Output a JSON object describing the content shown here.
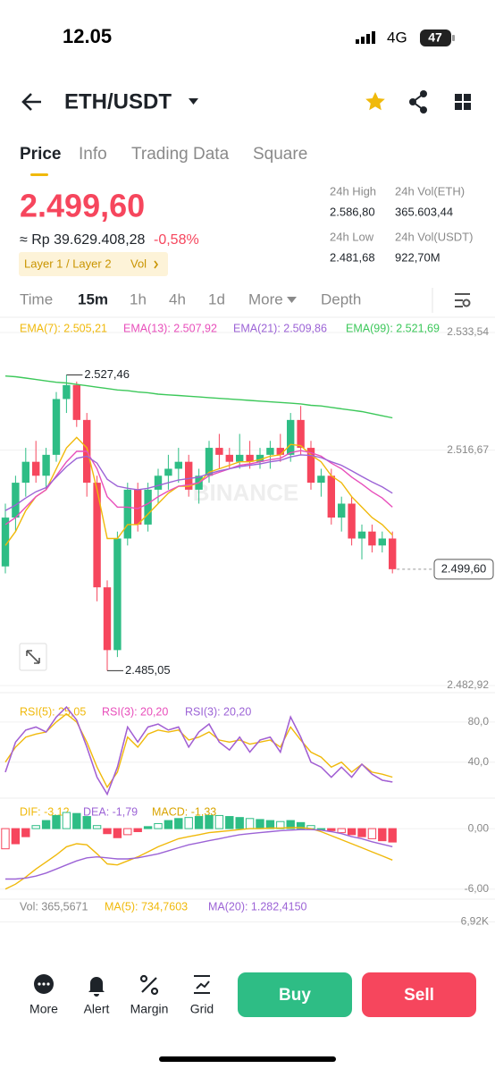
{
  "status_bar": {
    "time": "12.05",
    "network": "4G",
    "battery": "47"
  },
  "header": {
    "pair": "ETH/USDT"
  },
  "tabs": [
    "Price",
    "Info",
    "Trading Data",
    "Square"
  ],
  "ticker": {
    "price": "2.499,60",
    "fiat": "≈ Rp 39.629.408,28",
    "change": "-0,58%",
    "tags": [
      "Layer 1 / Layer 2",
      "Vol"
    ],
    "stats": [
      {
        "label": "24h High",
        "value": "2.586,80"
      },
      {
        "label": "24h Vol(ETH)",
        "value": "365.603,44"
      },
      {
        "label": "24h Low",
        "value": "2.481,68"
      },
      {
        "label": "24h Vol(USDT)",
        "value": "922,70M"
      }
    ]
  },
  "intervals": [
    "Time",
    "15m",
    "1h",
    "4h",
    "1d",
    "More",
    "Depth"
  ],
  "chart_data": [
    {
      "type": "candlestick",
      "watermark": "BINANCE",
      "up_color": "#2ebd85",
      "down_color": "#f6465d",
      "open": [
        2500,
        2507,
        2512,
        2515,
        2513,
        2516,
        2524,
        2526,
        2521,
        2512,
        2497,
        2488,
        2504,
        2511,
        2506,
        2511,
        2513,
        2514,
        2515,
        2511,
        2513,
        2517,
        2516,
        2515,
        2516,
        2515,
        2516,
        2517,
        2516,
        2521,
        2517,
        2512,
        2513,
        2507,
        2509,
        2504,
        2505,
        2503,
        2504
      ],
      "high": [
        2509,
        2513,
        2517,
        2518,
        2517,
        2525,
        2527.46,
        2526.5,
        2522,
        2513,
        2498,
        2505,
        2512,
        2512,
        2512,
        2514,
        2516,
        2517,
        2516,
        2514,
        2518,
        2519,
        2517,
        2519,
        2518,
        2517,
        2518,
        2519,
        2522,
        2523,
        2518,
        2514,
        2514,
        2510,
        2510,
        2506,
        2506,
        2505,
        2505
      ],
      "low": [
        2499,
        2505,
        2510,
        2512,
        2511,
        2515,
        2522,
        2520,
        2510,
        2495,
        2485.05,
        2487,
        2503,
        2505,
        2505,
        2509,
        2511,
        2512,
        2510,
        2509,
        2512,
        2514,
        2514,
        2514,
        2514,
        2514,
        2514,
        2515,
        2515,
        2516,
        2511,
        2510,
        2506,
        2505,
        2503,
        2501,
        2502,
        2502,
        2499
      ],
      "close": [
        2507,
        2512,
        2515,
        2513,
        2516,
        2524,
        2526,
        2521,
        2512,
        2497,
        2488,
        2504,
        2511,
        2506,
        2511,
        2513,
        2514,
        2515,
        2511,
        2513,
        2517,
        2516,
        2515,
        2516,
        2515,
        2516,
        2517,
        2516,
        2521,
        2517,
        2512,
        2513,
        2507,
        2509,
        2504,
        2505,
        2503,
        2504,
        2499.6
      ],
      "series": [
        {
          "name": "EMA(7): 2.505,21",
          "color": "#f0b90b",
          "values": [
            2503,
            2505,
            2508,
            2510,
            2511,
            2514,
            2517,
            2518.5,
            2517,
            2511,
            2504,
            2504,
            2506,
            2506,
            2507.5,
            2509,
            2510.5,
            2511.5,
            2511.5,
            2512,
            2513.5,
            2514,
            2514.5,
            2515,
            2515,
            2515.3,
            2515.8,
            2516,
            2517.5,
            2517.3,
            2516,
            2515,
            2513,
            2512,
            2510,
            2508.5,
            2507,
            2506,
            2504.5
          ]
        },
        {
          "name": "EMA(13): 2.507,92",
          "color": "#e84fbb",
          "values": [
            2506,
            2507,
            2508.5,
            2510,
            2511,
            2513,
            2515,
            2516.5,
            2516.5,
            2514,
            2510,
            2508.5,
            2508.5,
            2508.3,
            2509,
            2510,
            2510.8,
            2511.5,
            2511.7,
            2512,
            2513,
            2513.5,
            2514,
            2514.5,
            2514.7,
            2515,
            2515.3,
            2515.5,
            2516.3,
            2516.6,
            2516.3,
            2515.8,
            2514.8,
            2514,
            2512.8,
            2511.8,
            2510.7,
            2509.8,
            2508.5
          ]
        },
        {
          "name": "EMA(21): 2.509,86",
          "color": "#9c63d6",
          "values": [
            2508,
            2508.8,
            2509.8,
            2510.7,
            2511.3,
            2512.8,
            2514.3,
            2515.5,
            2515.8,
            2514.8,
            2512.5,
            2511.5,
            2511.2,
            2511,
            2511.2,
            2511.6,
            2512,
            2512.4,
            2512.6,
            2512.8,
            2513.3,
            2513.7,
            2514,
            2514.3,
            2514.5,
            2514.7,
            2515,
            2515.2,
            2515.7,
            2516,
            2515.9,
            2515.6,
            2515,
            2514.5,
            2513.7,
            2512.9,
            2512.1,
            2511.4,
            2510.5
          ]
        },
        {
          "name": "EMA(99): 2.521,69",
          "color": "#3cc85a",
          "values": [
            2527.3,
            2527.2,
            2527.0,
            2526.8,
            2526.6,
            2526.4,
            2526.3,
            2526.1,
            2525.9,
            2525.7,
            2525.5,
            2525.3,
            2525.2,
            2525.0,
            2524.9,
            2524.7,
            2524.6,
            2524.5,
            2524.4,
            2524.3,
            2524.2,
            2524.1,
            2524.0,
            2523.9,
            2523.8,
            2523.7,
            2523.6,
            2523.5,
            2523.4,
            2523.3,
            2523.1,
            2523.0,
            2522.8,
            2522.6,
            2522.4,
            2522.2,
            2521.9,
            2521.6,
            2521.3
          ]
        }
      ],
      "ylim": [
        2482.92,
        2533.54
      ],
      "yticks": [
        {
          "value": 2482.92,
          "label": "2.482,92"
        },
        {
          "value": 2516.67,
          "label": "2.516,67"
        },
        {
          "value": 2533.54,
          "label": "2.533,54"
        }
      ],
      "high_label": {
        "value": 2527.46,
        "label": "2.527,46"
      },
      "low_label": {
        "value": 2485.05,
        "label": "2.485,05"
      },
      "last_price": {
        "value": 2499.6,
        "label": "2.499,60"
      }
    },
    {
      "type": "line",
      "series": [
        {
          "name": "RSI(5): 25,05",
          "color": "#f0b90b",
          "values": [
            40,
            55,
            65,
            68,
            70,
            80,
            88,
            80,
            60,
            35,
            15,
            30,
            65,
            55,
            68,
            72,
            70,
            72,
            62,
            65,
            70,
            62,
            60,
            62,
            58,
            60,
            62,
            55,
            75,
            62,
            50,
            45,
            35,
            40,
            30,
            38,
            30,
            28,
            25.05
          ]
        },
        {
          "name": "RSI(3): 20,20",
          "color": "#e84fbb",
          "values": [
            30,
            60,
            72,
            75,
            70,
            85,
            95,
            82,
            55,
            25,
            8,
            35,
            75,
            60,
            75,
            78,
            72,
            75,
            55,
            70,
            78,
            60,
            52,
            65,
            50,
            62,
            65,
            50,
            85,
            65,
            40,
            35,
            25,
            35,
            25,
            38,
            28,
            22,
            20.2
          ]
        },
        {
          "name": "RSI(3): 20,20",
          "color": "#9c63d6",
          "values": [
            30,
            60,
            72,
            75,
            70,
            85,
            95,
            82,
            55,
            25,
            8,
            35,
            75,
            60,
            75,
            78,
            72,
            75,
            55,
            70,
            78,
            60,
            52,
            65,
            50,
            62,
            65,
            50,
            85,
            65,
            40,
            35,
            25,
            35,
            25,
            38,
            28,
            22,
            20.2
          ]
        }
      ],
      "ylim": [
        5,
        103
      ],
      "yticks": [
        {
          "value": 80,
          "label": "80,0"
        },
        {
          "value": 40,
          "label": "40,0"
        }
      ]
    },
    {
      "type": "macd",
      "up_color": "#2ebd85",
      "down_color": "#f6465d",
      "series": [
        {
          "name": "DIF: -3,12",
          "color": "#f0b90b",
          "values": [
            -6,
            -5.5,
            -4.8,
            -4,
            -3.3,
            -2.6,
            -1.8,
            -1.5,
            -1.6,
            -2.5,
            -3.5,
            -3.6,
            -3.2,
            -2.8,
            -2.3,
            -1.8,
            -1.4,
            -1.0,
            -0.8,
            -0.6,
            -0.4,
            -0.3,
            -0.2,
            -0.1,
            0,
            0,
            0.05,
            0.05,
            0.1,
            0.1,
            0,
            -0.3,
            -0.7,
            -1.1,
            -1.5,
            -1.9,
            -2.3,
            -2.7,
            -3.12
          ]
        },
        {
          "name": "DEA: -1,79",
          "color": "#9c63d6",
          "values": [
            -5,
            -5,
            -4.9,
            -4.7,
            -4.4,
            -4,
            -3.6,
            -3.2,
            -2.9,
            -2.8,
            -2.9,
            -3,
            -3,
            -2.9,
            -2.7,
            -2.5,
            -2.2,
            -1.9,
            -1.6,
            -1.4,
            -1.2,
            -1.0,
            -0.8,
            -0.6,
            -0.5,
            -0.4,
            -0.3,
            -0.2,
            -0.15,
            -0.1,
            -0.1,
            -0.15,
            -0.3,
            -0.5,
            -0.8,
            -1.0,
            -1.3,
            -1.55,
            -1.79
          ]
        },
        {
          "name": "MACD: -1,33",
          "color": "#d9a400",
          "style": "bar",
          "values": [
            -2,
            -1.5,
            -0.8,
            0.3,
            0.8,
            1.3,
            1.6,
            1.5,
            1.2,
            0.3,
            -0.5,
            -0.9,
            -0.6,
            -0.3,
            0.2,
            0.5,
            0.8,
            1.0,
            1.1,
            1.2,
            1.3,
            1.3,
            1.2,
            1.1,
            1.0,
            0.9,
            0.8,
            0.7,
            0.8,
            0.6,
            0.3,
            0,
            -0.2,
            -0.4,
            -0.6,
            -0.8,
            -1.0,
            -1.2,
            -1.33
          ]
        }
      ],
      "ylim": [
        -6.9,
        2.4
      ],
      "yticks": [
        {
          "value": 0,
          "label": "0,00"
        },
        {
          "value": -6,
          "label": "-6,00"
        }
      ]
    },
    {
      "type": "volume",
      "legend": [
        {
          "text": "Vol: 365,5671",
          "color": "#888888"
        },
        {
          "text": "MA(5): 734,7603",
          "color": "#f0b90b"
        },
        {
          "text": "MA(20): 1.282,4150",
          "color": "#9c63d6"
        }
      ],
      "ylim": [
        4000,
        8500
      ],
      "yticks": [
        {
          "value": 6920,
          "label": "6,92K"
        }
      ]
    }
  ],
  "bottom_bar": {
    "actions": [
      "More",
      "Alert",
      "Margin",
      "Grid"
    ],
    "buy": "Buy",
    "sell": "Sell"
  }
}
